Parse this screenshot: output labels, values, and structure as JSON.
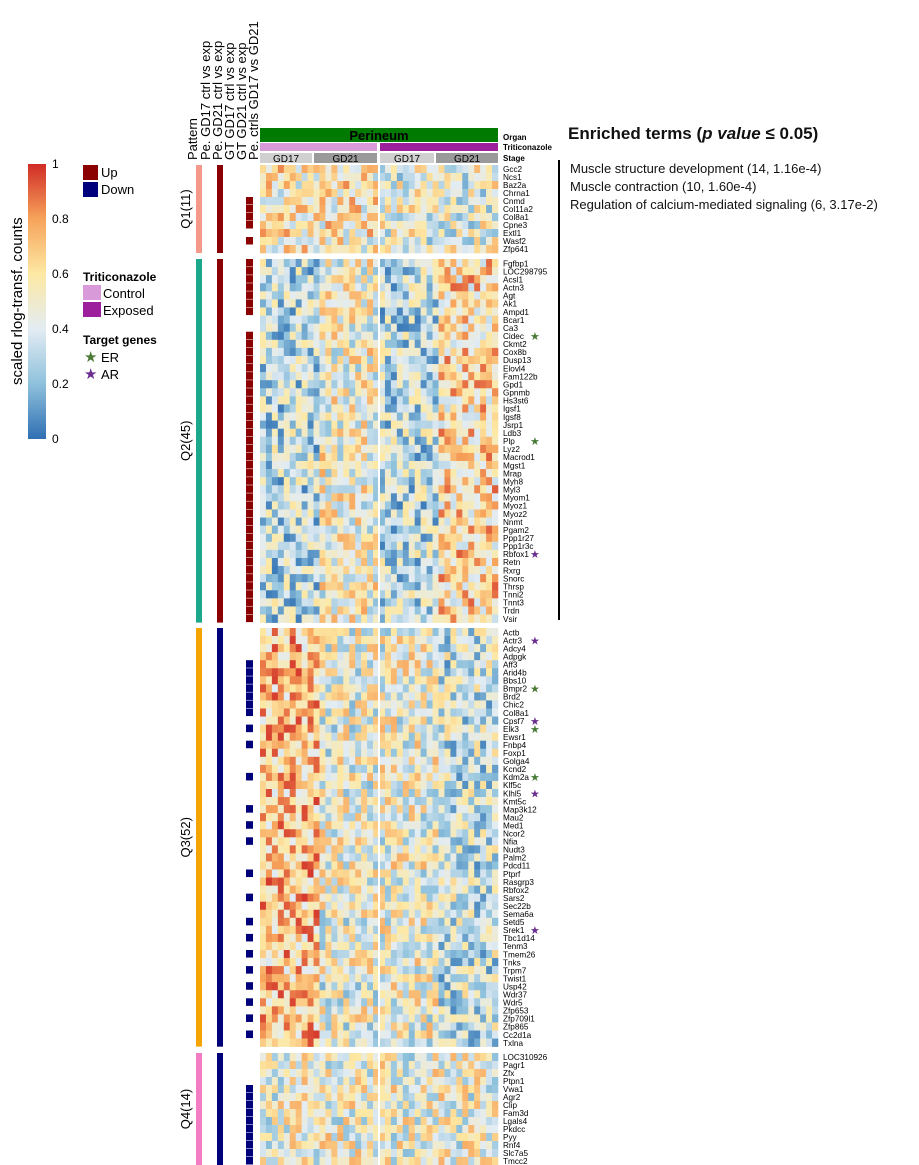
{
  "colorbar": {
    "title": "scaled rlog-transf. counts",
    "ticks": [
      "1",
      "0.8",
      "0.6",
      "0.4",
      "0.2",
      "0"
    ]
  },
  "legend": {
    "direction": [
      {
        "label": "Up",
        "color": "#8b0000"
      },
      {
        "label": "Down",
        "color": "#00007a"
      }
    ],
    "triticonazole_title": "Triticonazole",
    "triticonazole": [
      {
        "label": "Control",
        "color": "#d99ad9"
      },
      {
        "label": "Exposed",
        "color": "#9c1f9c"
      }
    ],
    "target_title": "Target genes",
    "targets": [
      {
        "label": "ER",
        "color": "#4a7a36"
      },
      {
        "label": "AR",
        "color": "#6a2e8e"
      }
    ]
  },
  "annotation_columns": [
    "Pattern",
    "Pe. GD17 ctrl vs exp",
    "Pe. GD21 ctrl vs exp",
    "GT GD17 ctrl vs exp",
    "GT GD21 ctrl vs exp",
    "Pe. ctrls GD17 vs GD21"
  ],
  "header": {
    "organ_label": "Organ",
    "organ_value": "Perineum",
    "organ_color": "#007a00",
    "triticonazole_label": "Triticonazole",
    "stage_label": "Stage",
    "stages": [
      "GD17",
      "GD21",
      "GD17",
      "GD21"
    ]
  },
  "enriched": {
    "title_prefix": "Enriched terms (",
    "title_italic": "p value",
    "title_suffix": " ≤ 0.05)",
    "terms": [
      "Muscle structure development (14, 1.16e-4)",
      "Muscle contraction (10, 1.60e-4)",
      "Regulation of calcium-mediated signaling (6, 3.17e-2)"
    ]
  },
  "chart_data": {
    "type": "heatmap",
    "title": "",
    "colorbar_title": "scaled rlog-transf. counts",
    "value_range": [
      0,
      1
    ],
    "n_sample_columns": 40,
    "clusters": [
      {
        "name": "Q1(11)",
        "color": "#f4998a",
        "direction": "Up",
        "pattern": "high-first",
        "genes": [
          "Gcc2",
          "Ncs1",
          "Baz2a",
          "Chrna1",
          "Cnmd",
          "Col11a2",
          "Col8a1",
          "Cpne3",
          "Extl1",
          "Wasf2",
          "Zfp641"
        ],
        "flag_rows": [
          4,
          5,
          6,
          7,
          9
        ],
        "flag_col5_rows": [],
        "stars": []
      },
      {
        "name": "Q2(45)",
        "color": "#1ca88a",
        "direction": "Up",
        "pattern": "high-late",
        "genes": [
          "Fgfbp1",
          "LOC298795",
          "Acsl1",
          "Actn3",
          "Agt",
          "Ak1",
          "Ampd1",
          "Bcar1",
          "Ca3",
          "Cidec",
          "Ckmt2",
          "Cox8b",
          "Dusp13",
          "Elovl4",
          "Fam122b",
          "Gpd1",
          "Gpnmb",
          "Hs3st6",
          "Igsf1",
          "Igsf8",
          "Jsrp1",
          "Ldb3",
          "Plp",
          "Lyz2",
          "Macrod1",
          "Mgst1",
          "Mrap",
          "Myh8",
          "Myl3",
          "Myom1",
          "Myoz1",
          "Myoz2",
          "Nnmt",
          "Pgam2",
          "Ppp1r27",
          "Ppp1r3c",
          "Rbfox1",
          "Retn",
          "Rxrg",
          "Snorc",
          "Thrsp",
          "Tnni2",
          "Tnnt3",
          "Trdn",
          "Vsir"
        ],
        "flag_rows": [
          0,
          1,
          2,
          3,
          4,
          5,
          6,
          9,
          10,
          11,
          12,
          13,
          14,
          15,
          16,
          17,
          18,
          19,
          20,
          21,
          22,
          23,
          24,
          25,
          26,
          27,
          28,
          29,
          30,
          31,
          32,
          33,
          34,
          35,
          36,
          37,
          38,
          39,
          40,
          41,
          42,
          43,
          44
        ],
        "flag_col5_rows": [],
        "stars": [
          {
            "gene": "Cidec",
            "type": "ER"
          },
          {
            "gene": "Plp",
            "type": "ER"
          },
          {
            "gene": "Rbfox1",
            "type": "AR"
          }
        ]
      },
      {
        "name": "Q3(52)",
        "color": "#f5a300",
        "direction": "Down",
        "pattern": "high-early",
        "genes": [
          "Actb",
          "Actr3",
          "Adcy4",
          "Adpgk",
          "Aff3",
          "Arid4b",
          "Bbs10",
          "Bmpr2",
          "Brd2",
          "Chic2",
          "Col8a1",
          "Cpsf7",
          "Elk3",
          "Ewsr1",
          "Fnbp4",
          "Foxp1",
          "Golga4",
          "Kcnd2",
          "Kdm2a",
          "Klf5c",
          "Klhl5",
          "Kmt5c",
          "Map3k12",
          "Mau2",
          "Med1",
          "Ncor2",
          "Nfia",
          "Nudt3",
          "Palm2",
          "Pdcd11",
          "Ptprf",
          "Rasgrp3",
          "Rbfox2",
          "Sars2",
          "Sec22b",
          "Sema6a",
          "Setd5",
          "Srek1",
          "Tbc1d14",
          "Tenm3",
          "Tmem26",
          "Tnks",
          "Trpm7",
          "Twist1",
          "Usp42",
          "Wdr37",
          "Wdr5",
          "Zfp653",
          "Zfp709l1",
          "Zfp865",
          "Cc2d1a",
          "Txlna"
        ],
        "flag_rows": [
          4,
          5,
          6,
          7,
          8,
          9,
          10,
          12,
          14,
          18,
          22,
          24,
          26,
          30,
          33,
          36,
          38,
          40,
          42,
          44,
          46,
          48,
          50
        ],
        "flag_col5_rows": [
          51
        ],
        "stars": [
          {
            "gene": "Actr3",
            "type": "AR"
          },
          {
            "gene": "Bmpr2",
            "type": "ER"
          },
          {
            "gene": "Cpsf7",
            "type": "AR"
          },
          {
            "gene": "Elk3",
            "type": "ER"
          },
          {
            "gene": "Kdm2a",
            "type": "ER"
          },
          {
            "gene": "Klhl5",
            "type": "AR"
          },
          {
            "gene": "Srek1",
            "type": "AR"
          }
        ]
      },
      {
        "name": "Q4(14)",
        "color": "#f47cc4",
        "direction": "Down",
        "pattern": "mixed",
        "genes": [
          "LOC310926",
          "Pagr1",
          "Zfx",
          "Ptpn1",
          "Vwa1",
          "Agr2",
          "Clip",
          "Fam3d",
          "Lgals4",
          "Pkdcc",
          "Pyy",
          "Rnf4",
          "Slc7a5",
          "Tmcc2"
        ],
        "flag_rows": [
          4,
          5,
          6,
          7,
          8,
          9,
          10,
          11,
          12,
          13
        ],
        "flag_col5_rows": [],
        "stars": []
      }
    ]
  }
}
